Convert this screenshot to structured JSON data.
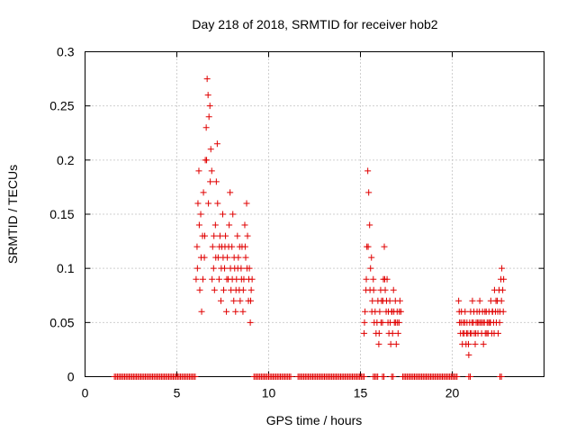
{
  "chart_data": {
    "type": "scatter",
    "title": "Day 218 of 2018, SRMTID for receiver hob2",
    "xlabel": "GPS time / hours",
    "ylabel": "SRMTID / TECUs",
    "xlim": [
      0,
      25
    ],
    "ylim": [
      0,
      0.3
    ],
    "grid": true,
    "marker": "+",
    "color": "#e00000",
    "x_ticks": [
      "0",
      "5",
      "10",
      "15",
      "20"
    ],
    "y_ticks": [
      "0",
      "0.05",
      "0.1",
      "0.15",
      "0.2",
      "0.25",
      "0.3"
    ],
    "series": [
      {
        "name": "SRMTID",
        "points": [
          [
            6.05,
            0.09
          ],
          [
            6.1,
            0.12
          ],
          [
            6.15,
            0.16
          ],
          [
            6.2,
            0.19
          ],
          [
            6.25,
            0.08
          ],
          [
            6.3,
            0.15
          ],
          [
            6.35,
            0.06
          ],
          [
            6.4,
            0.13
          ],
          [
            6.45,
            0.17
          ],
          [
            6.5,
            0.11
          ],
          [
            6.55,
            0.2
          ],
          [
            6.6,
            0.23
          ],
          [
            6.65,
            0.275
          ],
          [
            6.7,
            0.26
          ],
          [
            6.75,
            0.24
          ],
          [
            6.8,
            0.25
          ],
          [
            6.85,
            0.21
          ],
          [
            6.9,
            0.19
          ],
          [
            6.95,
            0.12
          ],
          [
            7.0,
            0.1
          ],
          [
            7.05,
            0.08
          ],
          [
            7.1,
            0.14
          ],
          [
            7.15,
            0.18
          ],
          [
            7.2,
            0.215
          ],
          [
            7.25,
            0.11
          ],
          [
            7.3,
            0.09
          ],
          [
            7.35,
            0.13
          ],
          [
            7.4,
            0.07
          ],
          [
            7.45,
            0.12
          ],
          [
            7.5,
            0.15
          ],
          [
            7.55,
            0.08
          ],
          [
            7.6,
            0.1
          ],
          [
            7.65,
            0.13
          ],
          [
            7.7,
            0.06
          ],
          [
            7.75,
            0.11
          ],
          [
            7.8,
            0.09
          ],
          [
            7.85,
            0.14
          ],
          [
            7.9,
            0.17
          ],
          [
            7.95,
            0.08
          ],
          [
            8.0,
            0.12
          ],
          [
            8.05,
            0.15
          ],
          [
            8.1,
            0.07
          ],
          [
            8.15,
            0.1
          ],
          [
            8.2,
            0.06
          ],
          [
            8.25,
            0.09
          ],
          [
            8.3,
            0.13
          ],
          [
            8.35,
            0.11
          ],
          [
            8.4,
            0.08
          ],
          [
            8.45,
            0.07
          ],
          [
            8.5,
            0.1
          ],
          [
            8.55,
            0.12
          ],
          [
            8.6,
            0.06
          ],
          [
            8.65,
            0.09
          ],
          [
            8.7,
            0.14
          ],
          [
            8.75,
            0.11
          ],
          [
            8.8,
            0.16
          ],
          [
            8.85,
            0.13
          ],
          [
            8.9,
            0.07
          ],
          [
            8.95,
            0.1
          ],
          [
            9.0,
            0.05
          ],
          [
            9.05,
            0.08
          ],
          [
            9.1,
            0.09
          ],
          [
            6.12,
            0.1
          ],
          [
            6.22,
            0.14
          ],
          [
            6.32,
            0.11
          ],
          [
            6.42,
            0.09
          ],
          [
            6.52,
            0.13
          ],
          [
            6.62,
            0.2
          ],
          [
            6.72,
            0.16
          ],
          [
            6.82,
            0.18
          ],
          [
            6.92,
            0.09
          ],
          [
            7.02,
            0.13
          ],
          [
            7.12,
            0.11
          ],
          [
            7.22,
            0.16
          ],
          [
            7.32,
            0.12
          ],
          [
            7.42,
            0.1
          ],
          [
            7.52,
            0.11
          ],
          [
            7.62,
            0.12
          ],
          [
            7.72,
            0.09
          ],
          [
            7.82,
            0.12
          ],
          [
            7.92,
            0.1
          ],
          [
            8.02,
            0.09
          ],
          [
            8.12,
            0.11
          ],
          [
            8.22,
            0.08
          ],
          [
            8.32,
            0.1
          ],
          [
            8.42,
            0.12
          ],
          [
            8.52,
            0.09
          ],
          [
            8.62,
            0.08
          ],
          [
            8.72,
            0.12
          ],
          [
            8.82,
            0.1
          ],
          [
            8.92,
            0.09
          ],
          [
            9.02,
            0.07
          ],
          [
            15.2,
            0.04
          ],
          [
            15.25,
            0.06
          ],
          [
            15.3,
            0.08
          ],
          [
            15.35,
            0.12
          ],
          [
            15.4,
            0.19
          ],
          [
            15.45,
            0.17
          ],
          [
            15.5,
            0.14
          ],
          [
            15.55,
            0.1
          ],
          [
            15.6,
            0.11
          ],
          [
            15.65,
            0.07
          ],
          [
            15.7,
            0.09
          ],
          [
            15.75,
            0.05
          ],
          [
            15.8,
            0.06
          ],
          [
            15.85,
            0.04
          ],
          [
            15.9,
            0.05
          ],
          [
            15.95,
            0.07
          ],
          [
            16.0,
            0.03
          ],
          [
            16.05,
            0.06
          ],
          [
            16.1,
            0.08
          ],
          [
            16.15,
            0.07
          ],
          [
            16.2,
            0.05
          ],
          [
            16.25,
            0.09
          ],
          [
            16.3,
            0.12
          ],
          [
            16.35,
            0.08
          ],
          [
            16.4,
            0.06
          ],
          [
            16.45,
            0.09
          ],
          [
            16.5,
            0.05
          ],
          [
            16.55,
            0.04
          ],
          [
            16.6,
            0.07
          ],
          [
            16.65,
            0.03
          ],
          [
            16.7,
            0.06
          ],
          [
            16.75,
            0.04
          ],
          [
            16.8,
            0.08
          ],
          [
            16.85,
            0.05
          ],
          [
            16.9,
            0.07
          ],
          [
            16.95,
            0.03
          ],
          [
            17.0,
            0.06
          ],
          [
            17.05,
            0.04
          ],
          [
            17.1,
            0.05
          ],
          [
            17.15,
            0.07
          ],
          [
            17.2,
            0.06
          ],
          [
            15.22,
            0.05
          ],
          [
            15.32,
            0.09
          ],
          [
            15.42,
            0.12
          ],
          [
            15.52,
            0.08
          ],
          [
            15.62,
            0.06
          ],
          [
            15.72,
            0.08
          ],
          [
            16.02,
            0.04
          ],
          [
            16.12,
            0.05
          ],
          [
            16.22,
            0.07
          ],
          [
            16.32,
            0.09
          ],
          [
            16.42,
            0.07
          ],
          [
            16.52,
            0.06
          ],
          [
            16.62,
            0.05
          ],
          [
            16.72,
            0.06
          ],
          [
            16.82,
            0.06
          ],
          [
            16.92,
            0.05
          ],
          [
            17.02,
            0.05
          ],
          [
            17.12,
            0.06
          ],
          [
            20.35,
            0.07
          ],
          [
            20.4,
            0.05
          ],
          [
            20.45,
            0.04
          ],
          [
            20.5,
            0.06
          ],
          [
            20.55,
            0.03
          ],
          [
            20.6,
            0.05
          ],
          [
            20.65,
            0.04
          ],
          [
            20.7,
            0.06
          ],
          [
            20.75,
            0.03
          ],
          [
            20.8,
            0.05
          ],
          [
            20.85,
            0.04
          ],
          [
            20.9,
            0.02
          ],
          [
            20.95,
            0.05
          ],
          [
            21.0,
            0.06
          ],
          [
            21.05,
            0.04
          ],
          [
            21.1,
            0.07
          ],
          [
            21.15,
            0.05
          ],
          [
            21.2,
            0.04
          ],
          [
            21.25,
            0.03
          ],
          [
            21.3,
            0.05
          ],
          [
            21.35,
            0.06
          ],
          [
            21.4,
            0.04
          ],
          [
            21.45,
            0.05
          ],
          [
            21.5,
            0.07
          ],
          [
            21.55,
            0.05
          ],
          [
            21.6,
            0.04
          ],
          [
            21.65,
            0.06
          ],
          [
            21.7,
            0.03
          ],
          [
            21.75,
            0.05
          ],
          [
            21.8,
            0.04
          ],
          [
            21.85,
            0.06
          ],
          [
            21.9,
            0.05
          ],
          [
            21.95,
            0.04
          ],
          [
            22.0,
            0.06
          ],
          [
            22.05,
            0.05
          ],
          [
            22.1,
            0.07
          ],
          [
            22.15,
            0.04
          ],
          [
            22.2,
            0.06
          ],
          [
            22.25,
            0.05
          ],
          [
            22.3,
            0.08
          ],
          [
            22.35,
            0.06
          ],
          [
            22.4,
            0.05
          ],
          [
            22.45,
            0.07
          ],
          [
            22.5,
            0.04
          ],
          [
            22.55,
            0.08
          ],
          [
            22.6,
            0.06
          ],
          [
            22.65,
            0.09
          ],
          [
            22.7,
            0.1
          ],
          [
            22.75,
            0.08
          ],
          [
            22.8,
            0.09
          ],
          [
            20.38,
            0.06
          ],
          [
            20.48,
            0.05
          ],
          [
            20.58,
            0.04
          ],
          [
            20.68,
            0.05
          ],
          [
            20.78,
            0.04
          ],
          [
            20.88,
            0.03
          ],
          [
            20.98,
            0.04
          ],
          [
            21.08,
            0.05
          ],
          [
            21.18,
            0.06
          ],
          [
            21.28,
            0.04
          ],
          [
            21.38,
            0.05
          ],
          [
            21.48,
            0.06
          ],
          [
            21.58,
            0.05
          ],
          [
            21.68,
            0.05
          ],
          [
            21.78,
            0.06
          ],
          [
            21.88,
            0.04
          ],
          [
            21.98,
            0.05
          ],
          [
            22.08,
            0.05
          ],
          [
            22.18,
            0.06
          ],
          [
            22.28,
            0.04
          ],
          [
            22.38,
            0.07
          ],
          [
            22.48,
            0.06
          ],
          [
            22.58,
            0.05
          ],
          [
            22.68,
            0.07
          ],
          [
            22.78,
            0.06
          ]
        ]
      }
    ],
    "zero_segments": [
      [
        1.6,
        6.05
      ],
      [
        9.2,
        11.2
      ],
      [
        11.6,
        15.2
      ],
      [
        15.7,
        15.95
      ],
      [
        16.2,
        16.35
      ],
      [
        16.7,
        16.85
      ],
      [
        17.3,
        20.3
      ],
      [
        20.9,
        21.05
      ],
      [
        22.6,
        22.75
      ]
    ]
  }
}
